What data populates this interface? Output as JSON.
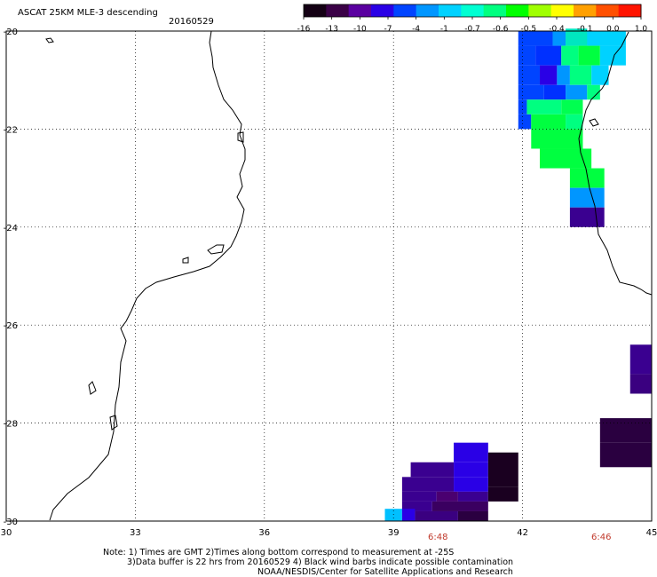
{
  "header": {
    "title": "ASCAT 25KM MLE-3 descending",
    "date": "20160529"
  },
  "colorbar": {
    "labels": [
      "-16",
      "-13",
      "-10",
      "-7",
      "-4",
      "-1",
      "-0.7",
      "-0.6",
      "-0.5",
      "-0.4",
      "-0.1",
      "0.0",
      "1.0"
    ],
    "colors": [
      "#140014",
      "#3a0046",
      "#5a00a0",
      "#2a00e6",
      "#0044ff",
      "#0096ff",
      "#00d2ff",
      "#00ffd2",
      "#00ff80",
      "#00ff00",
      "#a0ff00",
      "#ffff00",
      "#ffa000",
      "#ff5000",
      "#ff1400"
    ]
  },
  "axes": {
    "x_ticks": [
      "30",
      "33",
      "36",
      "39",
      "42",
      "45"
    ],
    "y_ticks": [
      "-20",
      "-22",
      "-24",
      "-26",
      "-28",
      "-30"
    ],
    "lon_range": [
      30,
      45
    ],
    "lat_range": [
      -30,
      -20
    ]
  },
  "times": [
    "6:48",
    "6:46"
  ],
  "notes": [
    "Note: 1) Times are GMT 2)Times along bottom correspond to measurement at -25S",
    "3)Data buffer is 22 hrs from 20160529 4) Black wind barbs indicate possible contamination",
    "NOAA/NESDIS/Center for Satellite Applications and Research"
  ],
  "swath_cells": [
    {
      "lon0": 41.9,
      "lat0": -20.3,
      "lon1": 42.7,
      "lat1": -20.0,
      "color": "#0044ff"
    },
    {
      "lon0": 42.7,
      "lat0": -20.3,
      "lon1": 43.0,
      "lat1": -20.0,
      "color": "#0096ff"
    },
    {
      "lon0": 43.0,
      "lat0": -20.3,
      "lon1": 44.4,
      "lat1": -20.0,
      "color": "#00d2ff"
    },
    {
      "lon0": 43.0,
      "lat0": -20.3,
      "lon1": 43.5,
      "lat1": -19.95,
      "color": "#00e6c0"
    },
    {
      "lon0": 41.9,
      "lat0": -20.7,
      "lon1": 42.3,
      "lat1": -20.3,
      "color": "#0044ff"
    },
    {
      "lon0": 42.3,
      "lat0": -20.7,
      "lon1": 42.9,
      "lat1": -20.3,
      "color": "#0030ff"
    },
    {
      "lon0": 42.9,
      "lat0": -20.7,
      "lon1": 43.3,
      "lat1": -20.3,
      "color": "#00ff80"
    },
    {
      "lon0": 43.3,
      "lat0": -20.7,
      "lon1": 43.8,
      "lat1": -20.3,
      "color": "#00ff40"
    },
    {
      "lon0": 43.8,
      "lat0": -20.7,
      "lon1": 44.4,
      "lat1": -20.3,
      "color": "#00d2ff"
    },
    {
      "lon0": 41.9,
      "lat0": -21.1,
      "lon1": 42.4,
      "lat1": -20.7,
      "color": "#0044ff"
    },
    {
      "lon0": 42.4,
      "lat0": -21.1,
      "lon1": 42.8,
      "lat1": -20.7,
      "color": "#2a00e6"
    },
    {
      "lon0": 42.8,
      "lat0": -21.1,
      "lon1": 43.1,
      "lat1": -20.7,
      "color": "#0096ff"
    },
    {
      "lon0": 43.1,
      "lat0": -21.1,
      "lon1": 43.6,
      "lat1": -20.7,
      "color": "#00ff80"
    },
    {
      "lon0": 43.6,
      "lat0": -21.1,
      "lon1": 44.0,
      "lat1": -20.7,
      "color": "#00d2ff"
    },
    {
      "lon0": 41.9,
      "lat0": -21.4,
      "lon1": 42.5,
      "lat1": -21.1,
      "color": "#0044ff"
    },
    {
      "lon0": 42.5,
      "lat0": -21.4,
      "lon1": 43.0,
      "lat1": -21.1,
      "color": "#0030ff"
    },
    {
      "lon0": 43.0,
      "lat0": -21.4,
      "lon1": 43.5,
      "lat1": -21.1,
      "color": "#0096ff"
    },
    {
      "lon0": 43.5,
      "lat0": -21.4,
      "lon1": 43.8,
      "lat1": -21.1,
      "color": "#00ff80"
    },
    {
      "lon0": 41.9,
      "lat0": -21.7,
      "lon1": 42.1,
      "lat1": -21.4,
      "color": "#0044ff"
    },
    {
      "lon0": 42.1,
      "lat0": -21.7,
      "lon1": 42.9,
      "lat1": -21.4,
      "color": "#00ff80"
    },
    {
      "lon0": 42.9,
      "lat0": -21.7,
      "lon1": 43.4,
      "lat1": -21.4,
      "color": "#00ff50"
    },
    {
      "lon0": 41.9,
      "lat0": -22.0,
      "lon1": 42.2,
      "lat1": -21.7,
      "color": "#0044ff"
    },
    {
      "lon0": 42.2,
      "lat0": -22.0,
      "lon1": 43.0,
      "lat1": -21.7,
      "color": "#00ff40"
    },
    {
      "lon0": 43.0,
      "lat0": -22.0,
      "lon1": 43.4,
      "lat1": -21.7,
      "color": "#00ff80"
    },
    {
      "lon0": 42.2,
      "lat0": -22.4,
      "lon1": 43.4,
      "lat1": -22.0,
      "color": "#00ff40"
    },
    {
      "lon0": 42.4,
      "lat0": -22.8,
      "lon1": 43.6,
      "lat1": -22.4,
      "color": "#00ff40"
    },
    {
      "lon0": 43.1,
      "lat0": -23.2,
      "lon1": 43.9,
      "lat1": -22.8,
      "color": "#00ff40"
    },
    {
      "lon0": 43.1,
      "lat0": -23.6,
      "lon1": 43.9,
      "lat1": -23.2,
      "color": "#0096ff"
    },
    {
      "lon0": 43.1,
      "lat0": -24.0,
      "lon1": 43.9,
      "lat1": -23.6,
      "color": "#3a0090"
    },
    {
      "lon0": 44.5,
      "lat0": -27.0,
      "lon1": 45.0,
      "lat1": -26.4,
      "color": "#3a0090"
    },
    {
      "lon0": 44.5,
      "lat0": -27.4,
      "lon1": 45.0,
      "lat1": -27.0,
      "color": "#3a0080"
    },
    {
      "lon0": 43.8,
      "lat0": -28.4,
      "lon1": 45.0,
      "lat1": -27.9,
      "color": "#2a0040"
    },
    {
      "lon0": 43.8,
      "lat0": -28.9,
      "lon1": 45.0,
      "lat1": -28.4,
      "color": "#2a0040"
    },
    {
      "lon0": 40.4,
      "lat0": -28.8,
      "lon1": 41.2,
      "lat1": -28.4,
      "color": "#2a00e6"
    },
    {
      "lon0": 39.4,
      "lat0": -29.1,
      "lon1": 40.4,
      "lat1": -28.8,
      "color": "#3a0090"
    },
    {
      "lon0": 40.4,
      "lat0": -29.1,
      "lon1": 41.2,
      "lat1": -28.8,
      "color": "#2a00e6"
    },
    {
      "lon0": 41.2,
      "lat0": -29.3,
      "lon1": 41.9,
      "lat1": -28.6,
      "color": "#1a0020"
    },
    {
      "lon0": 39.2,
      "lat0": -29.4,
      "lon1": 40.4,
      "lat1": -29.1,
      "color": "#3a0090"
    },
    {
      "lon0": 40.4,
      "lat0": -29.4,
      "lon1": 41.2,
      "lat1": -29.1,
      "color": "#2a00e6"
    },
    {
      "lon0": 39.2,
      "lat0": -29.6,
      "lon1": 40.0,
      "lat1": -29.4,
      "color": "#3a0090"
    },
    {
      "lon0": 40.0,
      "lat0": -29.6,
      "lon1": 40.5,
      "lat1": -29.4,
      "color": "#4a0070"
    },
    {
      "lon0": 40.5,
      "lat0": -29.6,
      "lon1": 41.2,
      "lat1": -29.4,
      "color": "#3a0090"
    },
    {
      "lon0": 41.2,
      "lat0": -29.6,
      "lon1": 41.9,
      "lat1": -29.3,
      "color": "#1a0020"
    },
    {
      "lon0": 39.2,
      "lat0": -29.8,
      "lon1": 39.9,
      "lat1": -29.6,
      "color": "#3a0090"
    },
    {
      "lon0": 39.9,
      "lat0": -29.8,
      "lon1": 41.2,
      "lat1": -29.6,
      "color": "#3a0060"
    },
    {
      "lon0": 38.8,
      "lat0": -30.0,
      "lon1": 39.2,
      "lat1": -29.75,
      "color": "#00c0ff"
    },
    {
      "lon0": 39.2,
      "lat0": -30.0,
      "lon1": 39.5,
      "lat1": -29.75,
      "color": "#2a00e6"
    },
    {
      "lon0": 39.5,
      "lat0": -30.0,
      "lon1": 40.5,
      "lat1": -29.8,
      "color": "#3a0080"
    },
    {
      "lon0": 40.5,
      "lat0": -30.0,
      "lon1": 41.2,
      "lat1": -29.8,
      "color": "#2a0040"
    }
  ]
}
